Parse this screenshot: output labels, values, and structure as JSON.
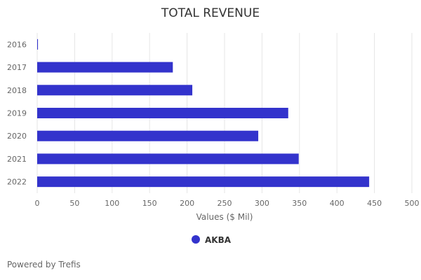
{
  "chart_data": {
    "type": "bar",
    "orientation": "horizontal",
    "title": "TOTAL REVENUE",
    "categories": [
      "2016",
      "2017",
      "2018",
      "2019",
      "2020",
      "2021",
      "2022"
    ],
    "series": [
      {
        "name": "AKBA",
        "values": [
          1,
          181,
          207,
          335,
          295,
          349,
          443
        ],
        "color": "#3333cc"
      }
    ],
    "xlabel": "Values ($ Mil)",
    "ylabel": "",
    "xlim": [
      0,
      500
    ],
    "xticks": [
      "0",
      "50",
      "100",
      "150",
      "200",
      "250",
      "300",
      "350",
      "400",
      "450",
      "500"
    ],
    "grid": true,
    "legend_position": "bottom"
  },
  "footer": {
    "credit": "Powered by Trefis"
  }
}
